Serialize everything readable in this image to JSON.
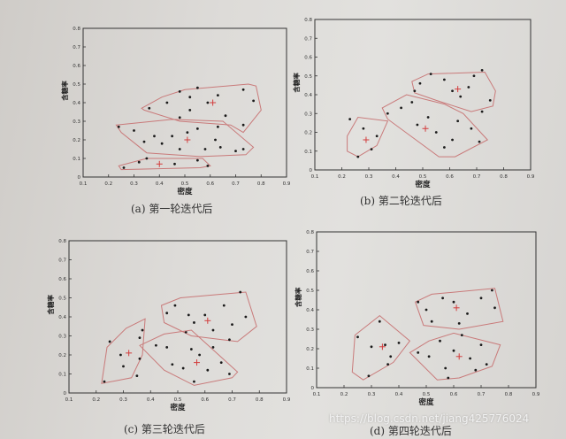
{
  "colors": {
    "axis": "#333333",
    "hull": "#c97a7a",
    "point": "#1a1a1a",
    "centroid": "#d23c3c"
  },
  "watermark": "https://blog.csdn.net/jiang425776024",
  "chart_data": [
    {
      "type": "scatter",
      "caption": "(a) 第一轮迭代后",
      "xlabel": "密度",
      "ylabel": "含糖率",
      "xlim": [
        0.1,
        0.9
      ],
      "ylim": [
        0,
        0.8
      ],
      "xticks": [
        "0.1",
        "0.2",
        "0.3",
        "0.4",
        "0.5",
        "0.6",
        "0.7",
        "0.8",
        "0.9"
      ],
      "yticks": [
        "0",
        "0.1",
        "0.2",
        "0.3",
        "0.4",
        "0.5",
        "0.6",
        "0.7",
        "0.8"
      ],
      "clusters": [
        {
          "centroid": [
            0.61,
            0.4
          ],
          "hull": [
            [
              0.33,
              0.37
            ],
            [
              0.41,
              0.43
            ],
            [
              0.5,
              0.47
            ],
            [
              0.75,
              0.5
            ],
            [
              0.78,
              0.49
            ],
            [
              0.8,
              0.36
            ],
            [
              0.73,
              0.24
            ],
            [
              0.68,
              0.28
            ],
            [
              0.48,
              0.3
            ],
            [
              0.34,
              0.36
            ]
          ],
          "points": [
            [
              0.36,
              0.37
            ],
            [
              0.43,
              0.4
            ],
            [
              0.48,
              0.46
            ],
            [
              0.52,
              0.43
            ],
            [
              0.55,
              0.48
            ],
            [
              0.63,
              0.44
            ],
            [
              0.73,
              0.47
            ],
            [
              0.77,
              0.41
            ],
            [
              0.52,
              0.36
            ],
            [
              0.66,
              0.33
            ],
            [
              0.73,
              0.28
            ],
            [
              0.59,
              0.4
            ],
            [
              0.48,
              0.32
            ]
          ]
        },
        {
          "centroid": [
            0.51,
            0.2
          ],
          "hull": [
            [
              0.23,
              0.28
            ],
            [
              0.45,
              0.31
            ],
            [
              0.65,
              0.3
            ],
            [
              0.77,
              0.16
            ],
            [
              0.74,
              0.12
            ],
            [
              0.56,
              0.11
            ],
            [
              0.35,
              0.13
            ],
            [
              0.25,
              0.24
            ]
          ],
          "points": [
            [
              0.24,
              0.27
            ],
            [
              0.3,
              0.25
            ],
            [
              0.34,
              0.19
            ],
            [
              0.38,
              0.22
            ],
            [
              0.41,
              0.18
            ],
            [
              0.45,
              0.22
            ],
            [
              0.48,
              0.15
            ],
            [
              0.51,
              0.24
            ],
            [
              0.55,
              0.26
            ],
            [
              0.58,
              0.15
            ],
            [
              0.62,
              0.2
            ],
            [
              0.63,
              0.27
            ],
            [
              0.7,
              0.14
            ],
            [
              0.73,
              0.15
            ],
            [
              0.64,
              0.16
            ]
          ]
        },
        {
          "centroid": [
            0.4,
            0.07
          ],
          "hull": [
            [
              0.24,
              0.06
            ],
            [
              0.35,
              0.1
            ],
            [
              0.57,
              0.1
            ],
            [
              0.6,
              0.06
            ],
            [
              0.56,
              0.05
            ],
            [
              0.25,
              0.04
            ]
          ],
          "points": [
            [
              0.26,
              0.05
            ],
            [
              0.32,
              0.08
            ],
            [
              0.35,
              0.1
            ],
            [
              0.46,
              0.07
            ],
            [
              0.55,
              0.09
            ],
            [
              0.59,
              0.06
            ]
          ]
        }
      ]
    },
    {
      "type": "scatter",
      "caption": "(b) 第二轮迭代后",
      "xlabel": "密度",
      "ylabel": "含糖率",
      "xlim": [
        0.1,
        0.9
      ],
      "ylim": [
        0,
        0.8
      ],
      "xticks": [
        "0.1",
        "0.2",
        "0.3",
        "0.4",
        "0.5",
        "0.6",
        "0.7",
        "0.8",
        "0.9"
      ],
      "yticks": [
        "0",
        "0.1",
        "0.2",
        "0.3",
        "0.4",
        "0.5",
        "0.6",
        "0.7",
        "0.8"
      ],
      "clusters": [
        {
          "centroid": [
            0.63,
            0.43
          ],
          "hull": [
            [
              0.46,
              0.47
            ],
            [
              0.52,
              0.51
            ],
            [
              0.73,
              0.52
            ],
            [
              0.77,
              0.42
            ],
            [
              0.76,
              0.34
            ],
            [
              0.68,
              0.31
            ],
            [
              0.55,
              0.37
            ],
            [
              0.47,
              0.41
            ]
          ],
          "points": [
            [
              0.47,
              0.42
            ],
            [
              0.49,
              0.46
            ],
            [
              0.53,
              0.51
            ],
            [
              0.58,
              0.48
            ],
            [
              0.61,
              0.42
            ],
            [
              0.67,
              0.44
            ],
            [
              0.69,
              0.5
            ],
            [
              0.72,
              0.53
            ],
            [
              0.64,
              0.39
            ],
            [
              0.72,
              0.31
            ],
            [
              0.75,
              0.37
            ]
          ]
        },
        {
          "centroid": [
            0.51,
            0.22
          ],
          "hull": [
            [
              0.35,
              0.33
            ],
            [
              0.44,
              0.4
            ],
            [
              0.58,
              0.35
            ],
            [
              0.65,
              0.3
            ],
            [
              0.74,
              0.16
            ],
            [
              0.62,
              0.07
            ],
            [
              0.56,
              0.07
            ],
            [
              0.37,
              0.27
            ]
          ],
          "points": [
            [
              0.37,
              0.3
            ],
            [
              0.42,
              0.33
            ],
            [
              0.46,
              0.36
            ],
            [
              0.48,
              0.24
            ],
            [
              0.52,
              0.28
            ],
            [
              0.55,
              0.2
            ],
            [
              0.58,
              0.12
            ],
            [
              0.61,
              0.16
            ],
            [
              0.63,
              0.26
            ],
            [
              0.68,
              0.22
            ],
            [
              0.71,
              0.15
            ]
          ]
        },
        {
          "centroid": [
            0.29,
            0.16
          ],
          "hull": [
            [
              0.22,
              0.18
            ],
            [
              0.26,
              0.28
            ],
            [
              0.37,
              0.26
            ],
            [
              0.33,
              0.13
            ],
            [
              0.26,
              0.07
            ],
            [
              0.22,
              0.1
            ]
          ],
          "points": [
            [
              0.23,
              0.27
            ],
            [
              0.28,
              0.22
            ],
            [
              0.31,
              0.11
            ],
            [
              0.33,
              0.18
            ],
            [
              0.26,
              0.07
            ]
          ]
        }
      ]
    },
    {
      "type": "scatter",
      "caption": "(c) 第三轮迭代后",
      "xlabel": "密度",
      "ylabel": "含糖率",
      "xlim": [
        0.1,
        0.9
      ],
      "ylim": [
        0,
        0.8
      ],
      "xticks": [
        "0.1",
        "0.2",
        "0.3",
        "0.4",
        "0.5",
        "0.6",
        "0.7",
        "0.8",
        "0.9"
      ],
      "yticks": [
        "0",
        "0.1",
        "0.2",
        "0.3",
        "0.4",
        "0.5",
        "0.6",
        "0.7",
        "0.8"
      ],
      "clusters": [
        {
          "centroid": [
            0.61,
            0.38
          ],
          "hull": [
            [
              0.44,
              0.46
            ],
            [
              0.51,
              0.5
            ],
            [
              0.75,
              0.53
            ],
            [
              0.79,
              0.35
            ],
            [
              0.72,
              0.27
            ],
            [
              0.55,
              0.3
            ],
            [
              0.45,
              0.37
            ]
          ],
          "points": [
            [
              0.46,
              0.42
            ],
            [
              0.49,
              0.46
            ],
            [
              0.54,
              0.41
            ],
            [
              0.56,
              0.37
            ],
            [
              0.6,
              0.41
            ],
            [
              0.63,
              0.33
            ],
            [
              0.67,
              0.46
            ],
            [
              0.7,
              0.36
            ],
            [
              0.73,
              0.53
            ],
            [
              0.75,
              0.4
            ],
            [
              0.69,
              0.28
            ],
            [
              0.53,
              0.32
            ]
          ]
        },
        {
          "centroid": [
            0.57,
            0.16
          ],
          "hull": [
            [
              0.36,
              0.25
            ],
            [
              0.45,
              0.31
            ],
            [
              0.55,
              0.33
            ],
            [
              0.72,
              0.11
            ],
            [
              0.7,
              0.08
            ],
            [
              0.56,
              0.04
            ],
            [
              0.45,
              0.12
            ]
          ],
          "points": [
            [
              0.42,
              0.25
            ],
            [
              0.46,
              0.24
            ],
            [
              0.48,
              0.15
            ],
            [
              0.52,
              0.13
            ],
            [
              0.55,
              0.23
            ],
            [
              0.58,
              0.2
            ],
            [
              0.61,
              0.12
            ],
            [
              0.66,
              0.16
            ],
            [
              0.69,
              0.1
            ],
            [
              0.56,
              0.06
            ],
            [
              0.63,
              0.24
            ]
          ]
        },
        {
          "centroid": [
            0.32,
            0.21
          ],
          "hull": [
            [
              0.24,
              0.24
            ],
            [
              0.31,
              0.34
            ],
            [
              0.38,
              0.39
            ],
            [
              0.37,
              0.2
            ],
            [
              0.33,
              0.08
            ],
            [
              0.22,
              0.05
            ]
          ],
          "points": [
            [
              0.25,
              0.27
            ],
            [
              0.29,
              0.2
            ],
            [
              0.3,
              0.14
            ],
            [
              0.35,
              0.09
            ],
            [
              0.36,
              0.29
            ],
            [
              0.37,
              0.33
            ],
            [
              0.36,
              0.18
            ],
            [
              0.23,
              0.06
            ]
          ]
        }
      ]
    },
    {
      "type": "scatter",
      "caption": "(d) 第四轮迭代后",
      "xlabel": "密度",
      "ylabel": "含糖率",
      "xlim": [
        0.1,
        0.9
      ],
      "ylim": [
        0,
        0.8
      ],
      "xticks": [
        "0.1",
        "0.2",
        "0.3",
        "0.4",
        "0.5",
        "0.6",
        "0.7",
        "0.8",
        "0.9"
      ],
      "yticks": [
        "0",
        "0.1",
        "0.2",
        "0.3",
        "0.4",
        "0.5",
        "0.6",
        "0.7",
        "0.8"
      ],
      "clusters": [
        {
          "centroid": [
            0.61,
            0.41
          ],
          "hull": [
            [
              0.46,
              0.44
            ],
            [
              0.52,
              0.48
            ],
            [
              0.75,
              0.51
            ],
            [
              0.78,
              0.34
            ],
            [
              0.62,
              0.3
            ],
            [
              0.49,
              0.32
            ]
          ],
          "points": [
            [
              0.47,
              0.44
            ],
            [
              0.5,
              0.4
            ],
            [
              0.52,
              0.34
            ],
            [
              0.56,
              0.46
            ],
            [
              0.6,
              0.44
            ],
            [
              0.65,
              0.38
            ],
            [
              0.7,
              0.46
            ],
            [
              0.74,
              0.5
            ],
            [
              0.75,
              0.41
            ],
            [
              0.62,
              0.33
            ]
          ]
        },
        {
          "centroid": [
            0.62,
            0.16
          ],
          "hull": [
            [
              0.44,
              0.18
            ],
            [
              0.51,
              0.24
            ],
            [
              0.6,
              0.28
            ],
            [
              0.77,
              0.22
            ],
            [
              0.74,
              0.11
            ],
            [
              0.62,
              0.05
            ],
            [
              0.54,
              0.04
            ]
          ],
          "points": [
            [
              0.47,
              0.18
            ],
            [
              0.51,
              0.16
            ],
            [
              0.55,
              0.24
            ],
            [
              0.57,
              0.1
            ],
            [
              0.6,
              0.19
            ],
            [
              0.63,
              0.27
            ],
            [
              0.66,
              0.15
            ],
            [
              0.7,
              0.22
            ],
            [
              0.72,
              0.12
            ],
            [
              0.68,
              0.09
            ],
            [
              0.58,
              0.05
            ]
          ]
        },
        {
          "centroid": [
            0.34,
            0.21
          ],
          "hull": [
            [
              0.24,
              0.27
            ],
            [
              0.33,
              0.37
            ],
            [
              0.44,
              0.24
            ],
            [
              0.38,
              0.13
            ],
            [
              0.27,
              0.04
            ],
            [
              0.23,
              0.08
            ]
          ],
          "points": [
            [
              0.25,
              0.26
            ],
            [
              0.3,
              0.21
            ],
            [
              0.33,
              0.34
            ],
            [
              0.35,
              0.22
            ],
            [
              0.37,
              0.16
            ],
            [
              0.4,
              0.23
            ],
            [
              0.29,
              0.06
            ],
            [
              0.36,
              0.12
            ]
          ]
        }
      ]
    }
  ]
}
